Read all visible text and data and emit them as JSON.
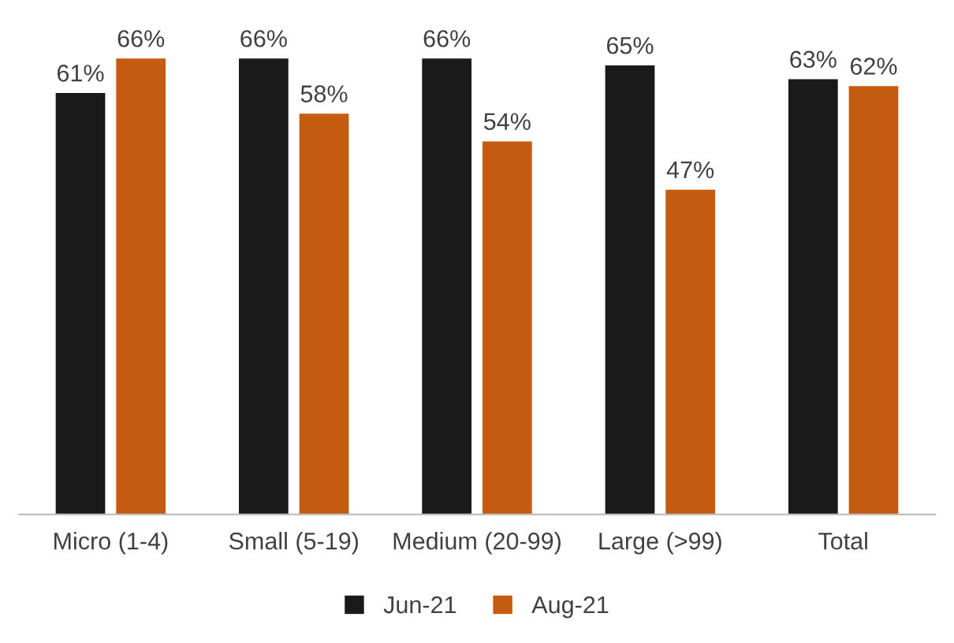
{
  "chart_data": {
    "type": "bar",
    "categories": [
      "Micro (1-4)",
      "Small (5-19)",
      "Medium (20-99)",
      "Large (>99)",
      "Total"
    ],
    "series": [
      {
        "name": "Jun-21",
        "color": "#1a1a1a",
        "values": [
          61,
          66,
          66,
          65,
          63
        ],
        "value_labels": [
          "61%",
          "66%",
          "66%",
          "65%",
          "63%"
        ]
      },
      {
        "name": "Aug-21",
        "color": "#c55a11",
        "values": [
          66,
          58,
          54,
          47,
          62
        ],
        "value_labels": [
          "66%",
          "58%",
          "54%",
          "47%",
          "62%"
        ]
      }
    ],
    "legend": "bottom",
    "grid": false,
    "tick_labels": "x"
  }
}
